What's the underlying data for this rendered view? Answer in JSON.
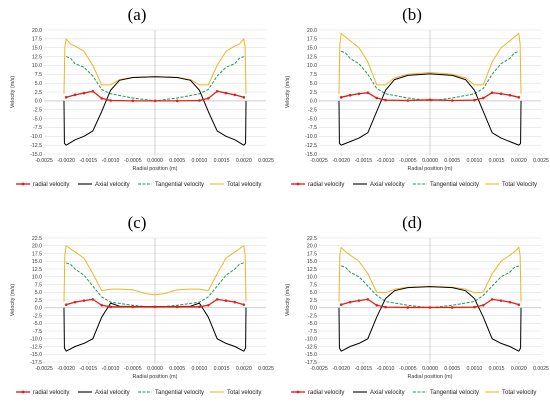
{
  "colors": {
    "radial": "#e0201c",
    "axial": "#000000",
    "tangential": "#1f9a52",
    "total": "#f0b323",
    "grid": "#d9d9d9",
    "axis": "#bfbfbf"
  },
  "chart_data": [
    {
      "panel_label": "(a)",
      "type": "line",
      "xlabel": "Radial position (m)",
      "ylabel": "Velocity (m/s)",
      "xlim": [
        -0.0025,
        0.0025
      ],
      "ylim": [
        -15,
        20
      ],
      "x_ticks": [
        "-0.0025",
        "-0.0020",
        "-0.0015",
        "-0.0010",
        "-0.0005",
        "0.0000",
        "0.0005",
        "0.0010",
        "0.0015",
        "0.0020",
        "0.0025"
      ],
      "y_ticks": [
        "20.0",
        "17.5",
        "15.0",
        "12.5",
        "10.0",
        "7.5",
        "5.0",
        "2.5",
        "0.0",
        "-2.5",
        "-5.0",
        "-7.5",
        "-10.0",
        "-12.5",
        "-15.0"
      ],
      "legend": [
        "radial velocity",
        "Axial velocity",
        "Tangential velocity",
        "Total velocity"
      ],
      "series": [
        {
          "name": "radial velocity",
          "key": "radial",
          "x": [
            -0.002,
            -0.0018,
            -0.0016,
            -0.0014,
            -0.0012,
            -0.001,
            -0.0005,
            0.0,
            0.0005,
            0.001,
            0.0012,
            0.0014,
            0.0016,
            0.0018,
            0.002
          ],
          "y": [
            1.0,
            1.7,
            2.2,
            2.7,
            0.7,
            0.1,
            0.0,
            0.0,
            0.0,
            0.1,
            0.7,
            2.7,
            2.2,
            1.7,
            1.0
          ]
        },
        {
          "name": "Axial velocity",
          "key": "axial",
          "x": [
            -0.00205,
            -0.00204,
            -0.002,
            -0.0018,
            -0.0016,
            -0.0014,
            -0.0012,
            -0.001,
            -0.0008,
            -0.0005,
            0.0,
            0.0005,
            0.0008,
            0.001,
            0.0012,
            0.0014,
            0.0016,
            0.0018,
            0.002,
            0.00204,
            0.00205
          ],
          "y": [
            0.0,
            -12.0,
            -12.5,
            -11.0,
            -10.0,
            -8.5,
            -3.0,
            3.0,
            5.8,
            6.6,
            6.8,
            6.6,
            5.8,
            3.0,
            -3.0,
            -8.5,
            -10.0,
            -11.0,
            -12.5,
            -12.0,
            0.0
          ]
        },
        {
          "name": "Tangential velocity",
          "key": "tangential",
          "x": [
            -0.002,
            -0.0019,
            -0.0018,
            -0.0016,
            -0.0014,
            -0.0012,
            -0.001,
            -0.0005,
            0.0,
            0.0005,
            0.001,
            0.0012,
            0.0014,
            0.0016,
            0.0018,
            0.0019,
            0.002
          ],
          "y": [
            12.5,
            12.0,
            10.5,
            9.5,
            7.0,
            3.2,
            2.0,
            0.8,
            0.0,
            0.8,
            2.0,
            3.2,
            7.0,
            9.5,
            10.5,
            12.0,
            12.5
          ]
        },
        {
          "name": "Total velocity",
          "key": "total",
          "x": [
            -0.00205,
            -0.00203,
            -0.002,
            -0.0019,
            -0.0018,
            -0.0016,
            -0.0014,
            -0.0012,
            -0.001,
            -0.0008,
            -0.0005,
            0.0,
            0.0005,
            0.0008,
            0.001,
            0.0012,
            0.0014,
            0.0016,
            0.0018,
            0.0019,
            0.002,
            0.00203,
            0.00205
          ],
          "y": [
            2.0,
            15.0,
            17.5,
            16.0,
            15.5,
            14.0,
            10.0,
            4.5,
            4.5,
            6.0,
            6.6,
            6.8,
            6.6,
            6.0,
            4.5,
            4.5,
            10.0,
            14.0,
            15.5,
            16.0,
            17.5,
            15.0,
            2.0
          ]
        }
      ]
    },
    {
      "panel_label": "(b)",
      "type": "line",
      "xlabel": "Radial position (m)",
      "ylabel": "Velocity (m/s)",
      "xlim": [
        -0.0025,
        0.0025
      ],
      "ylim": [
        -15,
        20
      ],
      "x_ticks": [
        "-0.0025",
        "-0.0020",
        "-0.0015",
        "-0.0010",
        "-0.0005",
        "0.0000",
        "0.0005",
        "0.0010",
        "0.0015",
        "0.0020",
        "0.0025"
      ],
      "y_ticks": [
        "20.0",
        "17.5",
        "15.0",
        "12.5",
        "10.0",
        "7.5",
        "5.0",
        "2.5",
        "0.0",
        "-2.5",
        "-5.0",
        "-7.5",
        "-10.0",
        "-12.5",
        "-15.0"
      ],
      "legend": [
        "radial velocity",
        "Axial velocity",
        "Tangential velocity",
        "Total Velocity"
      ],
      "series": [
        {
          "name": "radial velocity",
          "key": "radial",
          "x": [
            -0.002,
            -0.0018,
            -0.0016,
            -0.0014,
            -0.0012,
            -0.001,
            -0.0005,
            0.0,
            0.0005,
            0.001,
            0.0012,
            0.0014,
            0.0016,
            0.0018,
            0.002
          ],
          "y": [
            1.0,
            1.6,
            2.0,
            2.3,
            0.8,
            0.2,
            0.1,
            0.3,
            0.1,
            0.2,
            0.8,
            2.3,
            2.0,
            1.6,
            1.0
          ]
        },
        {
          "name": "Axial velocity",
          "key": "axial",
          "x": [
            -0.00205,
            -0.00204,
            -0.002,
            -0.0018,
            -0.0016,
            -0.0014,
            -0.0012,
            -0.001,
            -0.0008,
            -0.0005,
            0.0,
            0.0005,
            0.0008,
            0.001,
            0.0012,
            0.0014,
            0.0016,
            0.0018,
            0.002,
            0.00204,
            0.00205
          ],
          "y": [
            0.0,
            -12.0,
            -12.5,
            -11.5,
            -10.5,
            -9.0,
            -3.0,
            3.0,
            6.0,
            7.2,
            7.6,
            7.2,
            6.0,
            3.0,
            -3.0,
            -9.0,
            -10.5,
            -11.5,
            -12.5,
            -12.0,
            0.0
          ]
        },
        {
          "name": "Tangential velocity",
          "key": "tangential",
          "x": [
            -0.002,
            -0.0019,
            -0.0018,
            -0.0016,
            -0.0014,
            -0.0012,
            -0.001,
            -0.0005,
            0.0,
            0.0005,
            0.001,
            0.0012,
            0.0014,
            0.0016,
            0.0018,
            0.0019,
            0.002
          ],
          "y": [
            14.0,
            13.5,
            12.0,
            10.5,
            7.5,
            3.5,
            2.0,
            0.8,
            0.0,
            0.8,
            2.0,
            3.5,
            7.5,
            10.5,
            12.0,
            13.5,
            14.0
          ]
        },
        {
          "name": "Total Velocity",
          "key": "total",
          "x": [
            -0.00205,
            -0.00203,
            -0.002,
            -0.0019,
            -0.0018,
            -0.0016,
            -0.0014,
            -0.0012,
            -0.001,
            -0.0008,
            -0.0005,
            0.0,
            0.0005,
            0.0008,
            0.001,
            0.0012,
            0.0014,
            0.0016,
            0.0018,
            0.0019,
            0.002,
            0.00203,
            0.00205
          ],
          "y": [
            2.0,
            16.0,
            19.0,
            18.0,
            17.0,
            15.0,
            11.0,
            4.5,
            4.5,
            6.5,
            7.5,
            8.0,
            7.5,
            6.5,
            4.5,
            4.5,
            11.0,
            15.0,
            17.0,
            18.0,
            19.0,
            16.0,
            2.0
          ]
        }
      ]
    },
    {
      "panel_label": "(c)",
      "type": "line",
      "xlabel": "Radial position (m)",
      "ylabel": "Velocity (m/s)",
      "xlim": [
        -0.0025,
        0.0025
      ],
      "ylim": [
        -17.5,
        22.5
      ],
      "x_ticks": [
        "-0.0025",
        "-0.0020",
        "-0.0015",
        "-0.0010",
        "-0.0005",
        "0.0000",
        "0.0005",
        "0.0010",
        "0.0015",
        "0.0020",
        "0.0025"
      ],
      "y_ticks": [
        "22.5",
        "20.0",
        "17.5",
        "15.0",
        "12.5",
        "10.0",
        "7.5",
        "5.0",
        "2.5",
        "0.0",
        "-2.5",
        "-5.0",
        "-7.5",
        "-10.0",
        "-12.5",
        "-15.0",
        "-17.5"
      ],
      "legend": [
        "radial velocity",
        "Axial velocity",
        "Tangential velocity",
        "Total velocity"
      ],
      "series": [
        {
          "name": "radial velocity",
          "key": "radial",
          "x": [
            -0.002,
            -0.0018,
            -0.0016,
            -0.0014,
            -0.0012,
            -0.001,
            -0.0005,
            0.0,
            0.0005,
            0.001,
            0.0012,
            0.0014,
            0.0016,
            0.0018,
            0.002
          ],
          "y": [
            1.0,
            1.8,
            2.3,
            2.7,
            0.8,
            0.3,
            0.3,
            0.3,
            0.3,
            0.3,
            0.8,
            2.7,
            2.3,
            1.8,
            1.0
          ]
        },
        {
          "name": "Axial velocity",
          "key": "axial",
          "x": [
            -0.00205,
            -0.00204,
            -0.002,
            -0.0018,
            -0.0016,
            -0.0014,
            -0.0012,
            -0.001,
            -0.0008,
            -0.0005,
            0.0,
            0.0005,
            0.0008,
            0.001,
            0.0012,
            0.0014,
            0.0016,
            0.0018,
            0.002,
            0.00204,
            0.00205
          ],
          "y": [
            0.0,
            -13.0,
            -14.0,
            -12.5,
            -11.5,
            -10.0,
            -3.0,
            1.5,
            0.5,
            0.4,
            0.4,
            0.4,
            0.5,
            1.5,
            -3.0,
            -10.0,
            -11.5,
            -12.5,
            -14.0,
            -13.0,
            0.0
          ]
        },
        {
          "name": "Tangential velocity",
          "key": "tangential",
          "x": [
            -0.002,
            -0.0019,
            -0.0018,
            -0.0016,
            -0.0014,
            -0.0012,
            -0.001,
            -0.0005,
            0.0,
            0.0005,
            0.001,
            0.0012,
            0.0014,
            0.0016,
            0.0018,
            0.0019,
            0.002
          ],
          "y": [
            14.5,
            14.0,
            12.5,
            10.5,
            7.0,
            3.5,
            1.8,
            0.8,
            0.1,
            0.8,
            1.8,
            3.5,
            7.0,
            10.5,
            12.5,
            14.0,
            14.5
          ]
        },
        {
          "name": "Total velocity",
          "key": "total",
          "x": [
            -0.00205,
            -0.00203,
            -0.002,
            -0.0019,
            -0.0018,
            -0.0016,
            -0.0014,
            -0.0012,
            -0.001,
            -0.0008,
            -0.0005,
            -0.0002,
            0.0,
            0.0002,
            0.0005,
            0.0008,
            0.001,
            0.0012,
            0.0014,
            0.0016,
            0.0018,
            0.0019,
            0.002,
            0.00203,
            0.00205
          ],
          "y": [
            2.0,
            17.0,
            20.0,
            19.0,
            18.0,
            16.0,
            11.0,
            5.5,
            6.0,
            6.0,
            5.8,
            4.5,
            4.2,
            4.5,
            5.8,
            6.0,
            6.0,
            5.5,
            11.0,
            16.0,
            18.0,
            19.0,
            20.0,
            17.0,
            2.0
          ]
        }
      ]
    },
    {
      "panel_label": "(d)",
      "type": "line",
      "xlabel": "Radial position (m)",
      "ylabel": "Velocity (m/s)",
      "xlim": [
        -0.0025,
        0.0025
      ],
      "ylim": [
        -17.5,
        22.5
      ],
      "x_ticks": [
        "-0.0025",
        "-0.0020",
        "-0.0015",
        "-0.0010",
        "-0.0005",
        "0.0000",
        "0.0005",
        "0.0010",
        "0.0015",
        "0.0020",
        "0.0025"
      ],
      "y_ticks": [
        "22.5",
        "20.0",
        "17.5",
        "15.0",
        "12.5",
        "10.0",
        "7.5",
        "5.0",
        "2.5",
        "0.0",
        "-2.5",
        "-5.0",
        "-7.5",
        "-10.0",
        "-12.5",
        "-15.0",
        "-17.5"
      ],
      "legend": [
        "radial velocity",
        "Axial velocity",
        "Tangential velocity",
        "Total velocity"
      ],
      "series": [
        {
          "name": "radial velocity",
          "key": "radial",
          "x": [
            -0.002,
            -0.0018,
            -0.0016,
            -0.0014,
            -0.0012,
            -0.001,
            -0.0005,
            0.0,
            0.0005,
            0.001,
            0.0012,
            0.0014,
            0.0016,
            0.0018,
            0.002
          ],
          "y": [
            1.0,
            1.8,
            2.3,
            2.7,
            0.8,
            0.2,
            0.1,
            0.1,
            0.1,
            0.2,
            0.8,
            2.7,
            2.3,
            1.8,
            1.0
          ]
        },
        {
          "name": "Axial velocity",
          "key": "axial",
          "x": [
            -0.00205,
            -0.00204,
            -0.002,
            -0.0018,
            -0.0016,
            -0.0014,
            -0.0012,
            -0.001,
            -0.0008,
            -0.0005,
            0.0,
            0.0005,
            0.0008,
            0.001,
            0.0012,
            0.0014,
            0.0016,
            0.0018,
            0.002,
            0.00204,
            0.00205
          ],
          "y": [
            0.0,
            -13.0,
            -14.0,
            -12.5,
            -11.5,
            -10.0,
            -3.0,
            3.0,
            5.5,
            6.5,
            6.8,
            6.5,
            5.5,
            3.0,
            -3.0,
            -10.0,
            -11.5,
            -12.5,
            -14.0,
            -13.0,
            0.0
          ]
        },
        {
          "name": "Tangential velocity",
          "key": "tangential",
          "x": [
            -0.002,
            -0.0019,
            -0.0018,
            -0.0016,
            -0.0014,
            -0.0012,
            -0.001,
            -0.0005,
            0.0,
            0.0005,
            0.001,
            0.0012,
            0.0014,
            0.0016,
            0.0018,
            0.0019,
            0.002
          ],
          "y": [
            13.5,
            13.0,
            11.5,
            10.0,
            7.0,
            4.0,
            2.0,
            0.8,
            0.0,
            0.8,
            2.0,
            4.0,
            7.0,
            10.0,
            11.5,
            13.0,
            13.5
          ]
        },
        {
          "name": "Total velocity",
          "key": "total",
          "x": [
            -0.00205,
            -0.00203,
            -0.002,
            -0.0019,
            -0.0018,
            -0.0016,
            -0.0014,
            -0.0012,
            -0.001,
            -0.0008,
            -0.0005,
            0.0,
            0.0005,
            0.0008,
            0.001,
            0.0012,
            0.0014,
            0.0016,
            0.0018,
            0.0019,
            0.002,
            0.00203,
            0.00205
          ],
          "y": [
            2.0,
            17.0,
            19.5,
            18.0,
            17.0,
            15.0,
            11.0,
            5.0,
            4.8,
            6.0,
            6.6,
            6.8,
            6.6,
            6.0,
            4.8,
            5.0,
            11.0,
            15.0,
            17.0,
            18.0,
            19.5,
            17.0,
            2.0
          ]
        }
      ]
    }
  ]
}
